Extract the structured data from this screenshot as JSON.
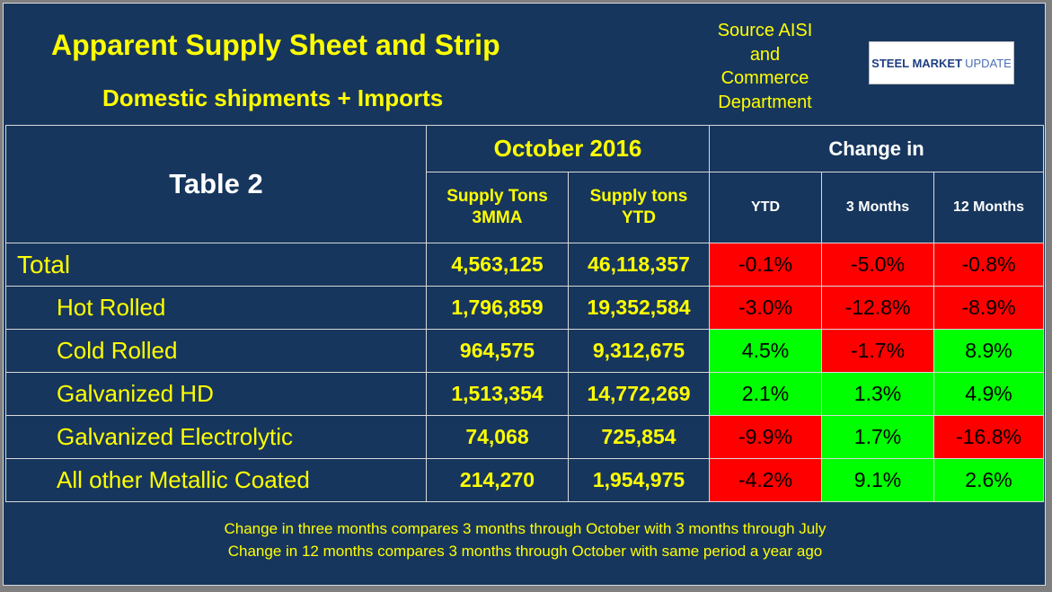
{
  "header": {
    "title": "Apparent Supply Sheet and Strip",
    "subtitle": "Domestic shipments + Imports",
    "source_lines": [
      "Source AISI",
      "and",
      "Commerce",
      "Department"
    ],
    "logo_text_a": "STEEL MARKET",
    "logo_text_b": "UPDATE"
  },
  "table": {
    "corner_label": "Table 2",
    "period_label": "October 2016",
    "change_label": "Change in",
    "col_supply_3mma": [
      "Supply Tons",
      "3MMA"
    ],
    "col_supply_ytd": [
      "Supply tons",
      "YTD"
    ],
    "col_ytd": "YTD",
    "col_3m": "3 Months",
    "col_12m": "12 Months",
    "rows": [
      {
        "label": "Total",
        "mma": "4,563,125",
        "ytd_tons": "46,118,357",
        "ytd": "-0.1%",
        "m3": "-5.0%",
        "m12": "-0.8%"
      },
      {
        "label": "Hot Rolled",
        "mma": "1,796,859",
        "ytd_tons": "19,352,584",
        "ytd": "-3.0%",
        "m3": "-12.8%",
        "m12": "-8.9%"
      },
      {
        "label": "Cold Rolled",
        "mma": "964,575",
        "ytd_tons": "9,312,675",
        "ytd": "4.5%",
        "m3": "-1.7%",
        "m12": "8.9%"
      },
      {
        "label": "Galvanized HD",
        "mma": "1,513,354",
        "ytd_tons": "14,772,269",
        "ytd": "2.1%",
        "m3": "1.3%",
        "m12": "4.9%"
      },
      {
        "label": "Galvanized Electrolytic",
        "mma": "74,068",
        "ytd_tons": "725,854",
        "ytd": "-9.9%",
        "m3": "1.7%",
        "m12": "-16.8%"
      },
      {
        "label": "All other Metallic Coated",
        "mma": "214,270",
        "ytd_tons": "1,954,975",
        "ytd": "-4.2%",
        "m3": "9.1%",
        "m12": "2.6%"
      }
    ]
  },
  "notes": [
    "Change in three months compares 3 months through October with 3 months through July",
    "Change in 12 months compares 3 months through October with same period a year ago"
  ],
  "colors": {
    "background": "#17365d",
    "text_accent": "#ffff00",
    "negative_cell": "#ff0000",
    "positive_cell": "#00ff00"
  }
}
